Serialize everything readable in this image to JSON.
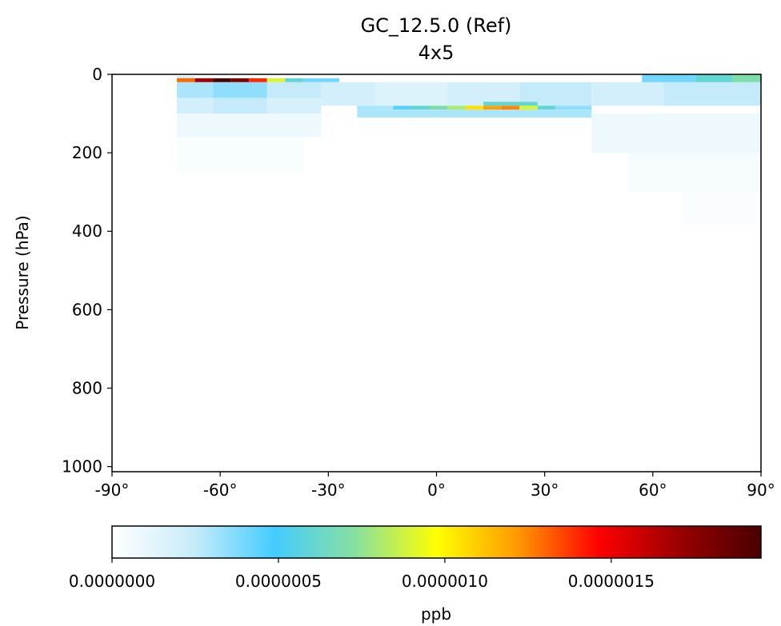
{
  "chart_data": {
    "type": "heatmap",
    "title": "GC_12.5.0 (Ref)",
    "subtitle": "4x5",
    "xlabel": "",
    "ylabel": "Pressure (hPa)",
    "xlim": [
      -90,
      90
    ],
    "ylim": [
      1013,
      0
    ],
    "x_ticks": [
      "-90°",
      "-60°",
      "-30°",
      "0°",
      "30°",
      "60°",
      "90°"
    ],
    "x_tick_values": [
      -90,
      -60,
      -30,
      0,
      30,
      60,
      90
    ],
    "y_ticks": [
      "0",
      "200",
      "400",
      "600",
      "800",
      "1000"
    ],
    "y_tick_values": [
      0,
      200,
      400,
      600,
      800,
      1000
    ],
    "colorbar": {
      "label": "ppb",
      "range": [
        0,
        1.95e-06
      ],
      "ticks": [
        "0.0000000",
        "0.0000005",
        "0.0000010",
        "0.0000015"
      ],
      "tick_values": [
        0,
        5e-07,
        1e-06,
        1.5e-06
      ],
      "colormap": [
        "#ffffff",
        "#c8ecfa",
        "#44ccff",
        "#88e0a0",
        "#ffff00",
        "#ff9900",
        "#ff0000",
        "#990000",
        "#4a0000"
      ]
    },
    "cells": [
      {
        "lat_min": -72,
        "lat_max": -67,
        "p_min": 5,
        "p_max": 10,
        "value": 2.5e-07
      },
      {
        "lat_min": -72,
        "lat_max": -67,
        "p_min": 10,
        "p_max": 20,
        "value": 1.3e-06
      },
      {
        "lat_min": -67,
        "lat_max": -62,
        "p_min": 10,
        "p_max": 20,
        "value": 1.7e-06
      },
      {
        "lat_min": -62,
        "lat_max": -57,
        "p_min": 10,
        "p_max": 20,
        "value": 1.95e-06
      },
      {
        "lat_min": -57,
        "lat_max": -52,
        "p_min": 10,
        "p_max": 20,
        "value": 1.8e-06
      },
      {
        "lat_min": -52,
        "lat_max": -47,
        "p_min": 10,
        "p_max": 20,
        "value": 1.4e-06
      },
      {
        "lat_min": -47,
        "lat_max": -42,
        "p_min": 10,
        "p_max": 20,
        "value": 9e-07
      },
      {
        "lat_min": -42,
        "lat_max": -37,
        "p_min": 10,
        "p_max": 20,
        "value": 6e-07
      },
      {
        "lat_min": -37,
        "lat_max": -27,
        "p_min": 10,
        "p_max": 20,
        "value": 4e-07
      },
      {
        "lat_min": -72,
        "lat_max": -62,
        "p_min": 20,
        "p_max": 60,
        "value": 3e-07
      },
      {
        "lat_min": -62,
        "lat_max": -47,
        "p_min": 20,
        "p_max": 60,
        "value": 3.5e-07
      },
      {
        "lat_min": -47,
        "lat_max": -32,
        "p_min": 20,
        "p_max": 60,
        "value": 2.5e-07
      },
      {
        "lat_min": -72,
        "lat_max": -62,
        "p_min": 60,
        "p_max": 100,
        "value": 2e-07
      },
      {
        "lat_min": -62,
        "lat_max": -47,
        "p_min": 60,
        "p_max": 100,
        "value": 2.5e-07
      },
      {
        "lat_min": -47,
        "lat_max": -32,
        "p_min": 60,
        "p_max": 100,
        "value": 1.8e-07
      },
      {
        "lat_min": -32,
        "lat_max": -17,
        "p_min": 20,
        "p_max": 80,
        "value": 2e-07
      },
      {
        "lat_min": -17,
        "lat_max": 3,
        "p_min": 20,
        "p_max": 80,
        "value": 1.5e-07
      },
      {
        "lat_min": 3,
        "lat_max": 23,
        "p_min": 20,
        "p_max": 80,
        "value": 2e-07
      },
      {
        "lat_min": 23,
        "lat_max": 43,
        "p_min": 20,
        "p_max": 80,
        "value": 2.5e-07
      },
      {
        "lat_min": 43,
        "lat_max": 63,
        "p_min": 20,
        "p_max": 80,
        "value": 2e-07
      },
      {
        "lat_min": 63,
        "lat_max": 90,
        "p_min": 20,
        "p_max": 80,
        "value": 2.5e-07
      },
      {
        "lat_min": -22,
        "lat_max": -12,
        "p_min": 80,
        "p_max": 90,
        "value": 3e-07
      },
      {
        "lat_min": -12,
        "lat_max": -7,
        "p_min": 80,
        "p_max": 90,
        "value": 4.5e-07
      },
      {
        "lat_min": -7,
        "lat_max": -2,
        "p_min": 80,
        "p_max": 90,
        "value": 6e-07
      },
      {
        "lat_min": -2,
        "lat_max": 3,
        "p_min": 80,
        "p_max": 90,
        "value": 7e-07
      },
      {
        "lat_min": 3,
        "lat_max": 8,
        "p_min": 80,
        "p_max": 90,
        "value": 8e-07
      },
      {
        "lat_min": 8,
        "lat_max": 13,
        "p_min": 80,
        "p_max": 90,
        "value": 1.05e-06
      },
      {
        "lat_min": 13,
        "lat_max": 18,
        "p_min": 80,
        "p_max": 90,
        "value": 1.2e-06
      },
      {
        "lat_min": 18,
        "lat_max": 23,
        "p_min": 80,
        "p_max": 90,
        "value": 1.25e-06
      },
      {
        "lat_min": 23,
        "lat_max": 28,
        "p_min": 80,
        "p_max": 90,
        "value": 9e-07
      },
      {
        "lat_min": 28,
        "lat_max": 33,
        "p_min": 80,
        "p_max": 90,
        "value": 6e-07
      },
      {
        "lat_min": 33,
        "lat_max": 43,
        "p_min": 80,
        "p_max": 90,
        "value": 3.5e-07
      },
      {
        "lat_min": -22,
        "lat_max": 43,
        "p_min": 90,
        "p_max": 110,
        "value": 3e-07
      },
      {
        "lat_min": 13,
        "lat_max": 28,
        "p_min": 70,
        "p_max": 80,
        "value": 6e-07
      },
      {
        "lat_min": 57,
        "lat_max": 72,
        "p_min": 0,
        "p_max": 20,
        "value": 4e-07
      },
      {
        "lat_min": 72,
        "lat_max": 82,
        "p_min": 0,
        "p_max": 20,
        "value": 6e-07
      },
      {
        "lat_min": 82,
        "lat_max": 90,
        "p_min": 0,
        "p_max": 20,
        "value": 7e-07
      },
      {
        "lat_min": -72,
        "lat_max": -32,
        "p_min": 100,
        "p_max": 160,
        "value": 8e-08
      },
      {
        "lat_min": -72,
        "lat_max": -37,
        "p_min": 160,
        "p_max": 250,
        "value": 3e-08
      },
      {
        "lat_min": 43,
        "lat_max": 90,
        "p_min": 100,
        "p_max": 200,
        "value": 8e-08
      },
      {
        "lat_min": 53,
        "lat_max": 90,
        "p_min": 200,
        "p_max": 300,
        "value": 4e-08
      },
      {
        "lat_min": 68,
        "lat_max": 90,
        "p_min": 300,
        "p_max": 380,
        "value": 2e-08
      }
    ]
  }
}
